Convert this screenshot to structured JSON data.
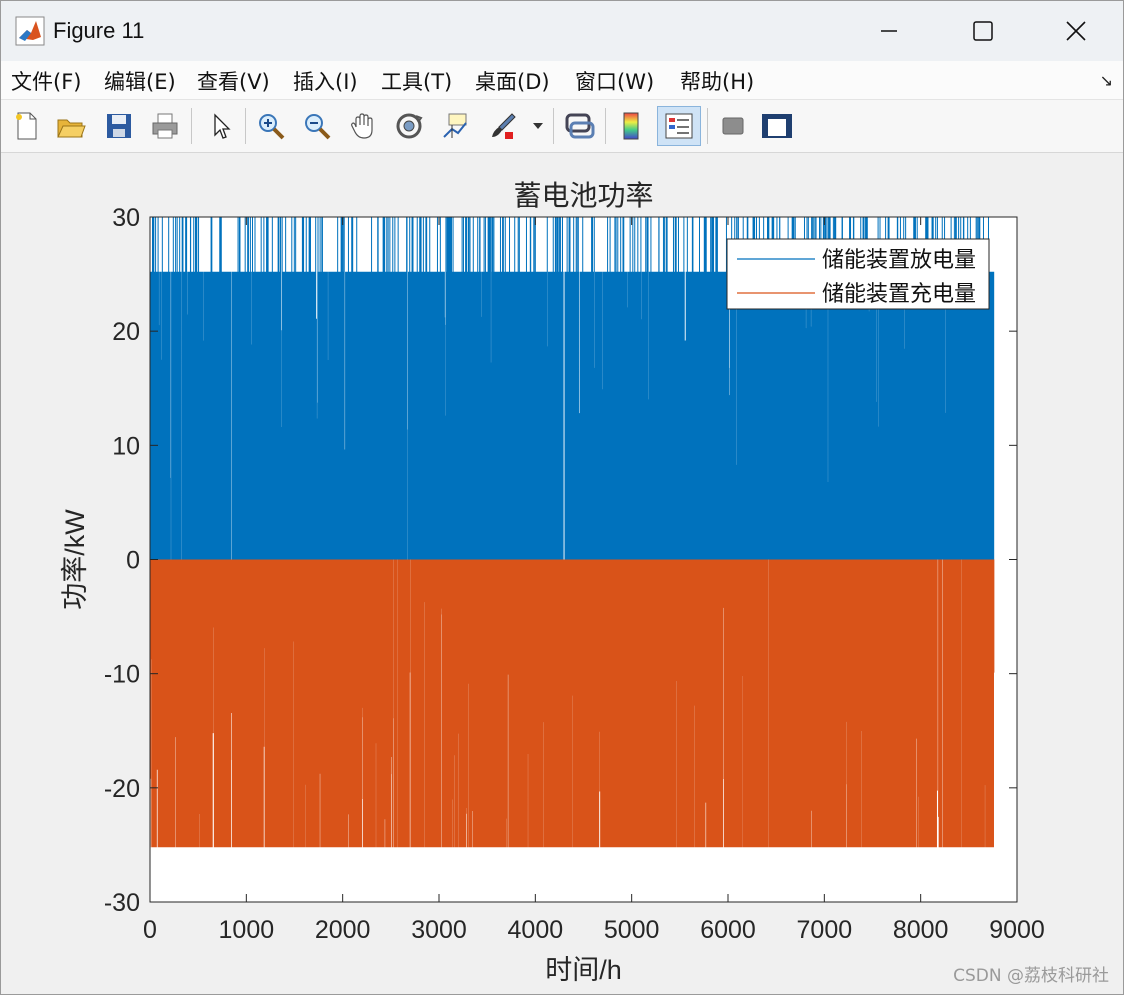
{
  "window": {
    "title": "Figure 11"
  },
  "menu": {
    "items": [
      {
        "label": "文件(F)"
      },
      {
        "label": "编辑(E)"
      },
      {
        "label": "查看(V)"
      },
      {
        "label": "插入(I)"
      },
      {
        "label": "工具(T)"
      },
      {
        "label": "桌面(D)"
      },
      {
        "label": "窗口(W)"
      },
      {
        "label": "帮助(H)"
      }
    ]
  },
  "toolbar": {
    "icons": [
      "new-figure-icon",
      "open-file-icon",
      "save-icon",
      "print-icon",
      "pointer-icon",
      "zoom-in-icon",
      "zoom-out-icon",
      "pan-hand-icon",
      "rotate-3d-icon",
      "data-cursor-icon",
      "brush-icon",
      "brush-dropdown-icon",
      "link-plot-icon",
      "colorbar-icon",
      "legend-icon",
      "hide-plot-tools-icon",
      "show-plot-tools-icon"
    ]
  },
  "watermark": "CSDN @荔枝科研社",
  "colors": {
    "discharge": "#0072BD",
    "charge": "#D95319"
  },
  "chart_data": {
    "type": "line",
    "title": "蓄电池功率",
    "xlabel": "时间/h",
    "ylabel": "功率/kW",
    "xlim": [
      0,
      9000
    ],
    "ylim": [
      -30,
      30
    ],
    "xticks": [
      "0",
      "1000",
      "2000",
      "3000",
      "4000",
      "5000",
      "6000",
      "7000",
      "8000",
      "9000"
    ],
    "yticks": [
      "30",
      "20",
      "10",
      "0",
      "-10",
      "-20",
      "-30"
    ],
    "legend_position": "top-right",
    "grid": false,
    "series": [
      {
        "name": "储能装置放电量",
        "color": "#0072BD",
        "x_range": [
          0,
          8760
        ],
        "typical_peak": 25.2,
        "max": 30,
        "min": 0
      },
      {
        "name": "储能装置充电量",
        "color": "#D95319",
        "x_range": [
          0,
          8760
        ],
        "typical_peak": -25.2,
        "max": 0,
        "min": -25.2
      }
    ]
  }
}
